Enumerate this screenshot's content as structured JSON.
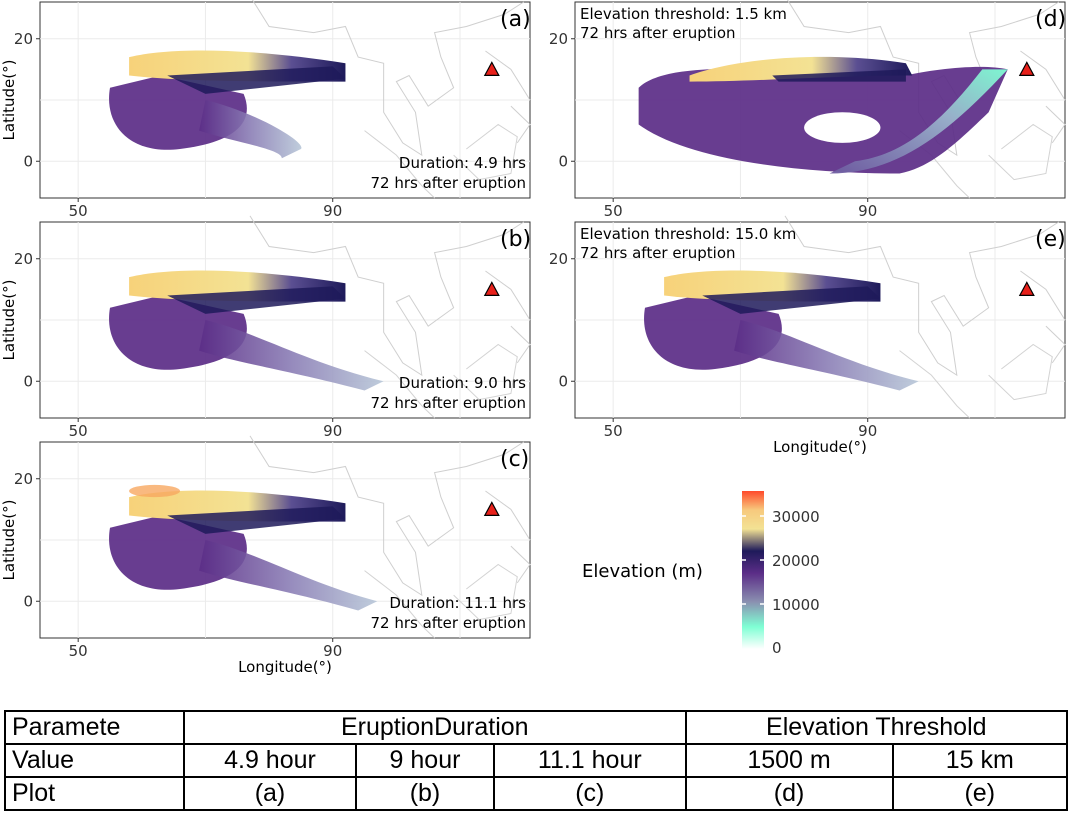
{
  "figure": {
    "x_axis_label": "Longitude(°)",
    "y_axis_label": "Latitude(°)",
    "legend_title": "Elevation (m)",
    "legend_ticks": [
      "30000",
      "20000",
      "10000",
      "0"
    ],
    "volcano_marker": "red-triangle"
  },
  "chart_data": [
    {
      "type": "scatter",
      "panel": "(a)",
      "title": "(a)",
      "annotation": [
        "Duration: 4.9 hrs",
        "72 hrs after eruption"
      ],
      "xlabel": "",
      "ylabel": "Latitude(°)",
      "x_ticks": [
        50,
        90
      ],
      "y_ticks": [
        0,
        20
      ],
      "xlim": [
        44,
        121
      ],
      "ylim": [
        -6,
        26
      ],
      "volcano": {
        "lon": 115,
        "lat": 15
      }
    },
    {
      "type": "scatter",
      "panel": "(b)",
      "title": "(b)",
      "annotation": [
        "Duration: 9.0 hrs",
        "72 hrs after eruption"
      ],
      "xlabel": "",
      "ylabel": "Latitude(°)",
      "x_ticks": [
        50,
        90
      ],
      "y_ticks": [
        0,
        20
      ],
      "xlim": [
        44,
        121
      ],
      "ylim": [
        -6,
        26
      ],
      "volcano": {
        "lon": 115,
        "lat": 15
      }
    },
    {
      "type": "scatter",
      "panel": "(c)",
      "title": "(c)",
      "annotation": [
        "Duration: 11.1 hrs",
        "72 hrs after eruption"
      ],
      "xlabel": "Longitude(°)",
      "ylabel": "Latitude(°)",
      "x_ticks": [
        50,
        90
      ],
      "y_ticks": [
        0,
        20
      ],
      "xlim": [
        44,
        121
      ],
      "ylim": [
        -6,
        26
      ],
      "volcano": {
        "lon": 115,
        "lat": 15
      }
    },
    {
      "type": "scatter",
      "panel": "(d)",
      "title": "(d)",
      "annotation": [
        "Elevation threshold: 1.5 km",
        "72 hrs after eruption"
      ],
      "xlabel": "",
      "ylabel": "",
      "x_ticks": [
        50,
        90
      ],
      "y_ticks": [
        0,
        20
      ],
      "xlim": [
        44,
        121
      ],
      "ylim": [
        -6,
        26
      ],
      "volcano": {
        "lon": 115,
        "lat": 15
      }
    },
    {
      "type": "scatter",
      "panel": "(e)",
      "title": "(e)",
      "annotation": [
        "Elevation threshold: 15.0 km",
        "72 hrs after eruption"
      ],
      "xlabel": "Longitude(°)",
      "ylabel": "",
      "x_ticks": [
        50,
        90
      ],
      "y_ticks": [
        0,
        20
      ],
      "xlim": [
        44,
        121
      ],
      "ylim": [
        -6,
        26
      ],
      "volcano": {
        "lon": 115,
        "lat": 15
      }
    }
  ],
  "colors": {
    "volcano": "#e8211b",
    "scale": [
      "#ffffff",
      "#7fffd4",
      "#8a8fb0",
      "#5b2d87",
      "#1e1a5a",
      "#f3e294",
      "#ff6a2b"
    ]
  },
  "table": {
    "header_row": {
      "label": "Paramete",
      "group1": "EruptionDuration",
      "group2": "Elevation Threshold"
    },
    "value_row": {
      "label": "Value",
      "cells": [
        "4.9 hour",
        "9 hour",
        "11.1 hour",
        "1500 m",
        "15 km"
      ]
    },
    "plot_row": {
      "label": "Plot",
      "cells": [
        "(a)",
        "(b)",
        "(c)",
        "(d)",
        "(e)"
      ]
    }
  }
}
